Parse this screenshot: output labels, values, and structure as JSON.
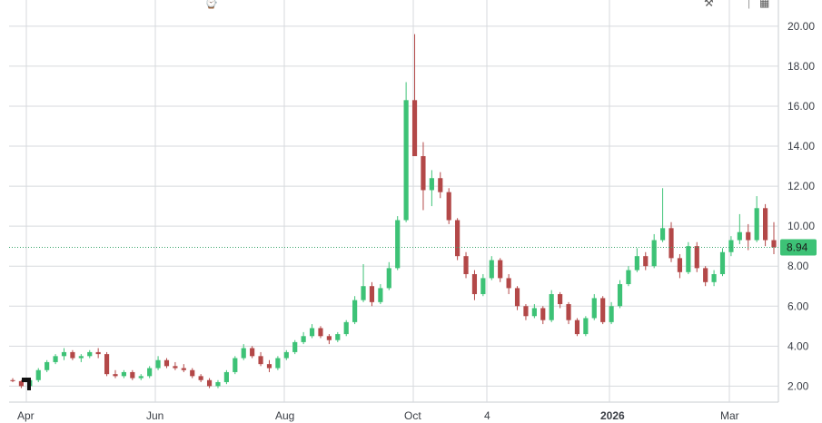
{
  "toolbar": {
    "left_icon": "clock-icon",
    "right_icons": [
      "tools-icon",
      "layout-icon"
    ]
  },
  "colors": {
    "up": "#3dc276",
    "down": "#b34848",
    "grid": "#d7dade",
    "price_line": "#3aa56b",
    "price_label_bg": "#3dc276",
    "axis_text": "#3a3e45"
  },
  "chart_data": {
    "type": "candlestick",
    "title": "",
    "xlabel": "",
    "ylabel": "",
    "ylim": [
      1.2,
      20.4
    ],
    "y_ticks": [
      "2.00",
      "4.00",
      "6.00",
      "8.00",
      "10.00",
      "12.00",
      "14.00",
      "16.00",
      "18.00",
      "20.00"
    ],
    "x_ticks": [
      {
        "label": "Apr",
        "bold": false
      },
      {
        "label": "Jun",
        "bold": false
      },
      {
        "label": "Aug",
        "bold": false
      },
      {
        "label": "Oct",
        "bold": false
      },
      {
        "label": "4",
        "bold": false
      },
      {
        "label": "2026",
        "bold": true
      },
      {
        "label": "Mar",
        "bold": false
      }
    ],
    "grid": true,
    "last_price": "8.94",
    "ohlc_weekly": [
      [
        2.3,
        2.4,
        2.2,
        2.25
      ],
      [
        2.25,
        2.3,
        1.9,
        2.0
      ],
      [
        2.0,
        2.4,
        1.8,
        2.3
      ],
      [
        2.3,
        2.9,
        2.2,
        2.8
      ],
      [
        2.8,
        3.3,
        2.7,
        3.2
      ],
      [
        3.2,
        3.6,
        3.1,
        3.5
      ],
      [
        3.5,
        3.9,
        3.3,
        3.7
      ],
      [
        3.7,
        3.8,
        3.3,
        3.4
      ],
      [
        3.4,
        3.6,
        3.2,
        3.5
      ],
      [
        3.5,
        3.8,
        3.4,
        3.7
      ],
      [
        3.7,
        3.9,
        3.4,
        3.6
      ],
      [
        3.6,
        3.7,
        2.5,
        2.6
      ],
      [
        2.6,
        2.8,
        2.4,
        2.5
      ],
      [
        2.5,
        2.8,
        2.4,
        2.7
      ],
      [
        2.7,
        2.8,
        2.3,
        2.4
      ],
      [
        2.4,
        2.6,
        2.3,
        2.5
      ],
      [
        2.5,
        3.0,
        2.4,
        2.9
      ],
      [
        2.9,
        3.5,
        2.8,
        3.3
      ],
      [
        3.3,
        3.4,
        2.9,
        3.0
      ],
      [
        3.0,
        3.2,
        2.8,
        2.9
      ],
      [
        2.9,
        3.1,
        2.7,
        2.8
      ],
      [
        2.8,
        2.9,
        2.4,
        2.5
      ],
      [
        2.5,
        2.6,
        2.2,
        2.3
      ],
      [
        2.3,
        2.4,
        1.9,
        2.0
      ],
      [
        2.0,
        2.3,
        1.9,
        2.2
      ],
      [
        2.2,
        2.8,
        2.1,
        2.7
      ],
      [
        2.7,
        3.5,
        2.6,
        3.4
      ],
      [
        3.4,
        4.1,
        3.3,
        3.9
      ],
      [
        3.9,
        4.0,
        3.4,
        3.5
      ],
      [
        3.5,
        3.7,
        3.0,
        3.1
      ],
      [
        3.1,
        3.3,
        2.7,
        2.9
      ],
      [
        2.9,
        3.5,
        2.8,
        3.4
      ],
      [
        3.4,
        3.8,
        3.3,
        3.7
      ],
      [
        3.7,
        4.3,
        3.6,
        4.2
      ],
      [
        4.2,
        4.7,
        4.1,
        4.5
      ],
      [
        4.5,
        5.1,
        4.4,
        4.9
      ],
      [
        4.9,
        5.0,
        4.4,
        4.5
      ],
      [
        4.5,
        4.6,
        4.1,
        4.3
      ],
      [
        4.3,
        4.7,
        4.2,
        4.6
      ],
      [
        4.6,
        5.3,
        4.5,
        5.2
      ],
      [
        5.2,
        6.5,
        5.1,
        6.3
      ],
      [
        6.3,
        8.1,
        6.2,
        7.0
      ],
      [
        7.0,
        7.2,
        6.0,
        6.2
      ],
      [
        6.2,
        7.1,
        6.1,
        6.9
      ],
      [
        6.9,
        8.2,
        6.8,
        7.9
      ],
      [
        7.9,
        10.5,
        7.8,
        10.3
      ],
      [
        10.3,
        17.2,
        10.2,
        16.3
      ],
      [
        16.3,
        19.6,
        16.0,
        13.5
      ],
      [
        13.5,
        14.2,
        10.8,
        11.8
      ],
      [
        11.8,
        12.8,
        11.0,
        12.4
      ],
      [
        12.4,
        12.7,
        11.4,
        11.7
      ],
      [
        11.7,
        11.9,
        10.1,
        10.3
      ],
      [
        10.3,
        10.4,
        8.3,
        8.5
      ],
      [
        8.5,
        8.7,
        7.4,
        7.6
      ],
      [
        7.6,
        7.8,
        6.3,
        6.6
      ],
      [
        6.6,
        7.6,
        6.5,
        7.4
      ],
      [
        7.4,
        8.5,
        7.3,
        8.3
      ],
      [
        8.3,
        8.4,
        7.2,
        7.4
      ],
      [
        7.4,
        7.6,
        6.6,
        6.9
      ],
      [
        6.9,
        7.0,
        5.8,
        6.0
      ],
      [
        6.0,
        6.1,
        5.3,
        5.5
      ],
      [
        5.5,
        6.1,
        5.4,
        5.9
      ],
      [
        5.9,
        6.0,
        5.1,
        5.3
      ],
      [
        5.3,
        6.8,
        5.2,
        6.6
      ],
      [
        6.6,
        6.7,
        5.9,
        6.1
      ],
      [
        6.1,
        6.2,
        5.1,
        5.3
      ],
      [
        5.3,
        5.4,
        4.5,
        4.6
      ],
      [
        4.6,
        5.5,
        4.5,
        5.4
      ],
      [
        5.4,
        6.6,
        5.3,
        6.4
      ],
      [
        6.4,
        6.5,
        5.1,
        5.2
      ],
      [
        5.2,
        6.2,
        5.1,
        6.0
      ],
      [
        6.0,
        7.3,
        5.9,
        7.1
      ],
      [
        7.1,
        8.0,
        7.0,
        7.8
      ],
      [
        7.8,
        8.9,
        7.7,
        8.5
      ],
      [
        8.5,
        8.7,
        7.8,
        8.0
      ],
      [
        8.0,
        9.6,
        7.9,
        9.3
      ],
      [
        9.3,
        11.9,
        9.2,
        9.9
      ],
      [
        9.9,
        10.2,
        8.2,
        8.4
      ],
      [
        8.4,
        8.6,
        7.4,
        7.7
      ],
      [
        7.7,
        9.2,
        7.6,
        9.0
      ],
      [
        9.0,
        9.2,
        7.7,
        7.9
      ],
      [
        7.9,
        8.0,
        7.0,
        7.2
      ],
      [
        7.2,
        7.8,
        7.0,
        7.6
      ],
      [
        7.6,
        8.9,
        7.5,
        8.7
      ],
      [
        8.7,
        9.5,
        8.5,
        9.3
      ],
      [
        9.3,
        10.6,
        9.1,
        9.7
      ],
      [
        9.7,
        10.1,
        8.8,
        9.3
      ],
      [
        9.3,
        11.5,
        9.2,
        10.9
      ],
      [
        10.9,
        11.1,
        9.0,
        9.3
      ],
      [
        9.3,
        10.2,
        8.6,
        8.94
      ]
    ]
  }
}
